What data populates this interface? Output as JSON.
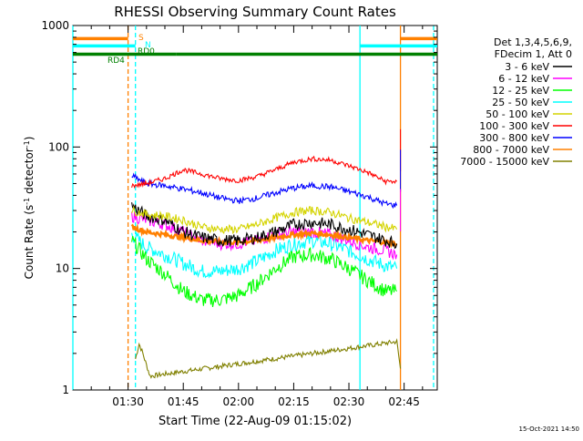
{
  "chart_data": {
    "type": "line",
    "title": "RHESSI Observing Summary Count Rates",
    "xlabel": "Start Time (22-Aug-09 01:15:02)",
    "ylabel_prefix": "Count Rate (s",
    "ylabel_sup1": "-1",
    "ylabel_mid": " detector",
    "ylabel_sup2": "-1",
    "ylabel_suffix": ")",
    "yscale": "log",
    "ylim": [
      1,
      1000
    ],
    "xlim": [
      "01:15",
      "02:54"
    ],
    "x_ticks": [
      "01:30",
      "01:45",
      "02:00",
      "02:15",
      "02:30",
      "02:45"
    ],
    "y_ticks": [
      "1",
      "10",
      "100",
      "1000"
    ],
    "legend_header": [
      "Det 1,3,4,5,6,9,",
      "FDecim 1, Att 0"
    ],
    "legend_position": "right",
    "timestamp": "15-Oct-2021 14:50",
    "series": [
      {
        "name": "3 - 6 keV",
        "color": "#000000",
        "points": [
          [
            "01:31",
            33
          ],
          [
            "01:35",
            27
          ],
          [
            "01:40",
            25
          ],
          [
            "01:45",
            20
          ],
          [
            "01:50",
            18
          ],
          [
            "01:55",
            17
          ],
          [
            "02:00",
            17
          ],
          [
            "02:05",
            18
          ],
          [
            "02:10",
            20
          ],
          [
            "02:15",
            23
          ],
          [
            "02:20",
            24
          ],
          [
            "02:25",
            23
          ],
          [
            "02:30",
            21
          ],
          [
            "02:35",
            19
          ],
          [
            "02:40",
            17
          ],
          [
            "02:43",
            16
          ]
        ]
      },
      {
        "name": "6 - 12 keV",
        "color": "#ff00ff",
        "points": [
          [
            "01:31",
            27
          ],
          [
            "01:35",
            25
          ],
          [
            "01:40",
            23
          ],
          [
            "01:45",
            20
          ],
          [
            "01:50",
            17
          ],
          [
            "01:55",
            16
          ],
          [
            "02:00",
            16
          ],
          [
            "02:05",
            17
          ],
          [
            "02:10",
            19
          ],
          [
            "02:15",
            20
          ],
          [
            "02:20",
            20
          ],
          [
            "02:25",
            19
          ],
          [
            "02:30",
            17
          ],
          [
            "02:35",
            15
          ],
          [
            "02:40",
            14
          ],
          [
            "02:43",
            13
          ]
        ]
      },
      {
        "name": "12 - 25 keV",
        "color": "#00ff00",
        "points": [
          [
            "01:31",
            17
          ],
          [
            "01:35",
            12
          ],
          [
            "01:40",
            9
          ],
          [
            "01:45",
            6.5
          ],
          [
            "01:50",
            5.5
          ],
          [
            "01:55",
            5.5
          ],
          [
            "02:00",
            6
          ],
          [
            "02:05",
            7.5
          ],
          [
            "02:10",
            10
          ],
          [
            "02:15",
            12.5
          ],
          [
            "02:20",
            13
          ],
          [
            "02:25",
            12
          ],
          [
            "02:30",
            10
          ],
          [
            "02:35",
            8
          ],
          [
            "02:40",
            6.5
          ],
          [
            "02:43",
            6.5
          ]
        ]
      },
      {
        "name": "25 - 50 keV",
        "color": "#00ffff",
        "points": [
          [
            "01:31",
            19
          ],
          [
            "01:35",
            15
          ],
          [
            "01:40",
            13
          ],
          [
            "01:45",
            11
          ],
          [
            "01:50",
            9.5
          ],
          [
            "01:55",
            9.5
          ],
          [
            "02:00",
            10
          ],
          [
            "02:05",
            11.5
          ],
          [
            "02:10",
            14
          ],
          [
            "02:15",
            16
          ],
          [
            "02:20",
            17
          ],
          [
            "02:25",
            16
          ],
          [
            "02:30",
            14
          ],
          [
            "02:35",
            12
          ],
          [
            "02:40",
            10.5
          ],
          [
            "02:43",
            10
          ]
        ]
      },
      {
        "name": "50 - 100 keV",
        "color": "#d4d400",
        "points": [
          [
            "01:31",
            30
          ],
          [
            "01:35",
            28
          ],
          [
            "01:40",
            27
          ],
          [
            "01:45",
            25
          ],
          [
            "01:50",
            22
          ],
          [
            "01:55",
            21
          ],
          [
            "02:00",
            21
          ],
          [
            "02:05",
            23
          ],
          [
            "02:10",
            26
          ],
          [
            "02:15",
            29
          ],
          [
            "02:20",
            30
          ],
          [
            "02:25",
            29
          ],
          [
            "02:30",
            26
          ],
          [
            "02:35",
            24
          ],
          [
            "02:40",
            22
          ],
          [
            "02:43",
            21
          ]
        ]
      },
      {
        "name": "100 - 300 keV",
        "color": "#ff0000",
        "points": [
          [
            "01:31",
            48
          ],
          [
            "01:35",
            50
          ],
          [
            "01:40",
            55
          ],
          [
            "01:45",
            65
          ],
          [
            "01:50",
            60
          ],
          [
            "01:55",
            55
          ],
          [
            "02:00",
            53
          ],
          [
            "02:05",
            57
          ],
          [
            "02:10",
            65
          ],
          [
            "02:15",
            75
          ],
          [
            "02:20",
            80
          ],
          [
            "02:25",
            78
          ],
          [
            "02:30",
            70
          ],
          [
            "02:35",
            62
          ],
          [
            "02:40",
            52
          ],
          [
            "02:43",
            52
          ]
        ]
      },
      {
        "name": "300 - 800 keV",
        "color": "#0000ff",
        "points": [
          [
            "01:31",
            58
          ],
          [
            "01:35",
            50
          ],
          [
            "01:40",
            48
          ],
          [
            "01:45",
            45
          ],
          [
            "01:50",
            42
          ],
          [
            "01:55",
            38
          ],
          [
            "02:00",
            36
          ],
          [
            "02:05",
            38
          ],
          [
            "02:10",
            42
          ],
          [
            "02:15",
            46
          ],
          [
            "02:20",
            48
          ],
          [
            "02:25",
            47
          ],
          [
            "02:30",
            43
          ],
          [
            "02:35",
            39
          ],
          [
            "02:40",
            34
          ],
          [
            "02:43",
            33
          ]
        ]
      },
      {
        "name": "800 - 7000 keV",
        "color": "#ff8000",
        "points": [
          [
            "01:31",
            22
          ],
          [
            "01:35",
            20
          ],
          [
            "01:40",
            19
          ],
          [
            "01:45",
            18
          ],
          [
            "01:50",
            17
          ],
          [
            "01:55",
            16.5
          ],
          [
            "02:00",
            16.5
          ],
          [
            "02:05",
            17
          ],
          [
            "02:10",
            18
          ],
          [
            "02:15",
            19
          ],
          [
            "02:20",
            19.5
          ],
          [
            "02:25",
            19
          ],
          [
            "02:30",
            18
          ],
          [
            "02:35",
            17
          ],
          [
            "02:40",
            16.5
          ],
          [
            "02:43",
            16
          ]
        ]
      },
      {
        "name": "7000 - 15000 keV",
        "color": "#808000",
        "points": [
          [
            "01:32",
            1.8
          ],
          [
            "01:33",
            2.4
          ],
          [
            "01:34",
            2.0
          ],
          [
            "01:35",
            1.6
          ],
          [
            "01:36",
            1.3
          ],
          [
            "02:43",
            2.5
          ],
          [
            "02:44",
            1.5
          ]
        ]
      }
    ],
    "annotations": [
      {
        "text": "S",
        "color": "#ff8000"
      },
      {
        "text": "N",
        "color": "#00ffff"
      },
      {
        "text": "RD0",
        "color": "#008000"
      },
      {
        "text": "RD4",
        "color": "#008000"
      }
    ],
    "state_bars": [
      {
        "label": "S",
        "color": "#ff8000",
        "level": 780,
        "segments": [
          [
            "01:15",
            "01:30"
          ],
          [
            "02:44",
            "02:54"
          ]
        ]
      },
      {
        "label": "N",
        "color": "#00ffff",
        "level": 680,
        "segments": [
          [
            "01:15",
            "01:32"
          ],
          [
            "02:33",
            "02:54"
          ]
        ]
      },
      {
        "label": "RD4",
        "color": "#008000",
        "level": 580,
        "segments": [
          [
            "01:15",
            "01:43"
          ],
          [
            "01:43",
            "02:54"
          ]
        ]
      }
    ],
    "markers": [
      {
        "color": "#00ffff",
        "style": "solid",
        "time": "01:15"
      },
      {
        "color": "#ff8000",
        "style": "dashed",
        "time": "01:30"
      },
      {
        "color": "#00ffff",
        "style": "dashed",
        "time": "01:32"
      },
      {
        "color": "#00ffff",
        "style": "solid",
        "time": "02:33"
      },
      {
        "color": "#ff8000",
        "style": "solid",
        "time": "02:44"
      },
      {
        "color": "#00ffff",
        "style": "dashed",
        "time": "02:53"
      }
    ]
  }
}
